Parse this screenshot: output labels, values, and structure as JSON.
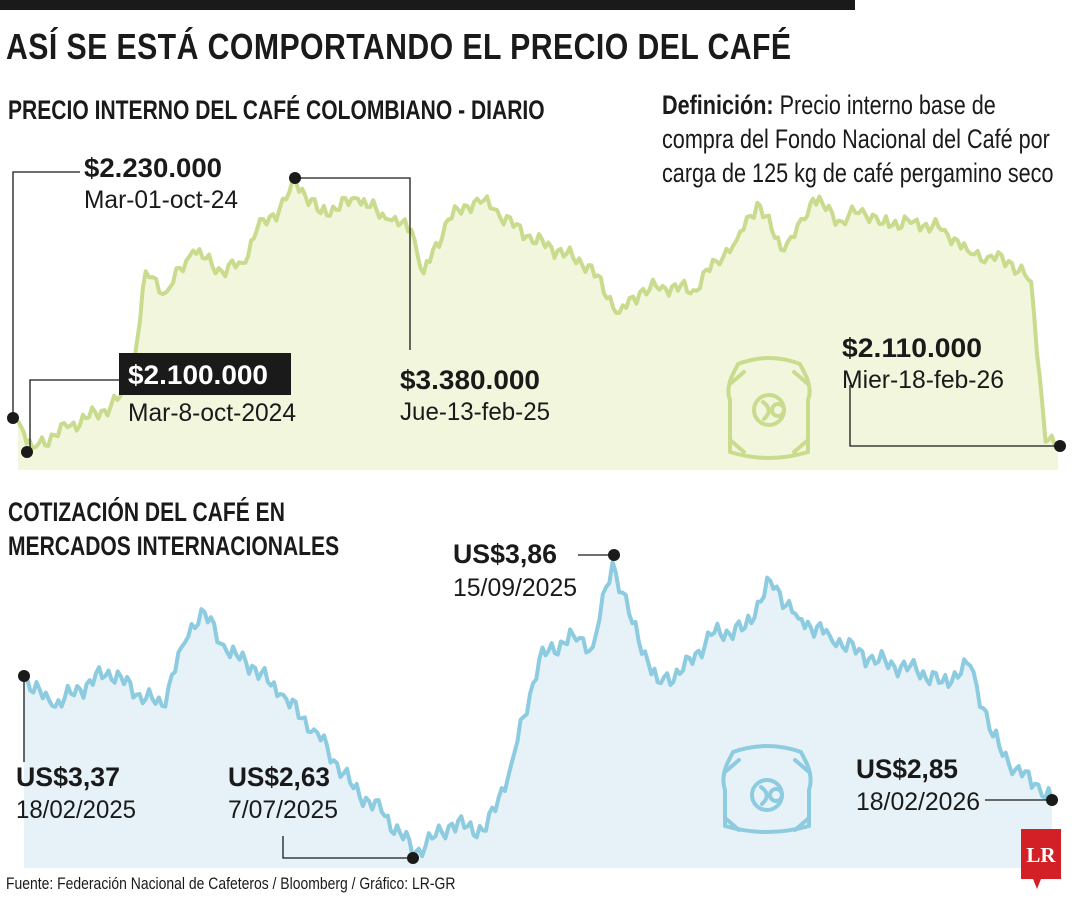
{
  "title": "ASÍ SE ESTÁ COMPORTANDO EL PRECIO DEL CAFÉ",
  "definition": {
    "label": "Definición:",
    "text": " Precio interno base de compra del Fondo Nacional del Café por carga de 125 kg de café pergamino seco"
  },
  "source": "Fuente: Federación Nacional de Cafeteros / Bloomberg / Gráfico: LR-GR",
  "logo": "LR",
  "colors": {
    "domestic_line": "#c9dc8e",
    "domestic_fill": "#f1f6dd",
    "international_line": "#8ccbe0",
    "international_fill": "#e6f2f8",
    "text": "#1a1a1a",
    "logo_red": "#d32027"
  },
  "icons": [
    "coffee-sack-icon",
    "coffee-sack-icon"
  ],
  "chart_data": [
    {
      "type": "area",
      "title": "PRECIO INTERNO DEL CAFÉ COLOMBIANO - DIARIO",
      "x_start": "2024-10-01",
      "x_end": "2026-02-18",
      "grid": false,
      "series": [
        {
          "points": [
            [
              "2024-10-01",
              2230000
            ],
            [
              "2024-10-08",
              2100000
            ],
            [
              "2024-10-25",
              2200000
            ],
            [
              "2024-11-15",
              2300000
            ],
            [
              "2024-11-25",
              2400000
            ],
            [
              "2024-12-02",
              2950000
            ],
            [
              "2024-12-12",
              2850000
            ],
            [
              "2024-12-25",
              3050000
            ],
            [
              "2025-01-08",
              2950000
            ],
            [
              "2025-01-18",
              2990000
            ],
            [
              "2025-01-25",
              3150000
            ],
            [
              "2025-02-05",
              3250000
            ],
            [
              "2025-02-13",
              3380000
            ],
            [
              "2025-02-25",
              3230000
            ],
            [
              "2025-03-15",
              3300000
            ],
            [
              "2025-03-30",
              3200000
            ],
            [
              "2025-04-10",
              3150000
            ],
            [
              "2025-04-16",
              2940000
            ],
            [
              "2025-04-28",
              3200000
            ],
            [
              "2025-05-12",
              3300000
            ],
            [
              "2025-05-20",
              3250000
            ],
            [
              "2025-06-05",
              3120000
            ],
            [
              "2025-06-20",
              3050000
            ],
            [
              "2025-07-05",
              2980000
            ],
            [
              "2025-07-20",
              2750000
            ],
            [
              "2025-07-30",
              2850000
            ],
            [
              "2025-08-10",
              2880000
            ],
            [
              "2025-08-25",
              2860000
            ],
            [
              "2025-09-05",
              3000000
            ],
            [
              "2025-09-15",
              3100000
            ],
            [
              "2025-09-25",
              3280000
            ],
            [
              "2025-10-02",
              3150000
            ],
            [
              "2025-10-08",
              3050000
            ],
            [
              "2025-10-18",
              3200000
            ],
            [
              "2025-10-22",
              3300000
            ],
            [
              "2025-11-05",
              3190000
            ],
            [
              "2025-11-15",
              3250000
            ],
            [
              "2025-11-25",
              3180000
            ],
            [
              "2025-12-10",
              3190000
            ],
            [
              "2025-12-25",
              3150000
            ],
            [
              "2026-01-05",
              3050000
            ],
            [
              "2026-01-15",
              3020000
            ],
            [
              "2026-01-25",
              3000000
            ],
            [
              "2026-02-05",
              2900000
            ],
            [
              "2026-02-12",
              2130000
            ],
            [
              "2026-02-18",
              2110000
            ]
          ]
        }
      ],
      "annotations": [
        {
          "value": "$2.230.000",
          "date": "Mar-01-oct-24"
        },
        {
          "value": "$2.100.000",
          "date": "Mar-8-oct-2024"
        },
        {
          "value": "$3.380.000",
          "date": "Jue-13-feb-25"
        },
        {
          "value": "$2.110.000",
          "date": "Mier-18-feb-26"
        }
      ]
    },
    {
      "type": "area",
      "title": "COTIZACIÓN DEL CAFÉ EN MERCADOS INTERNACIONALES",
      "x_start": "2025-02-18",
      "x_end": "2026-02-18",
      "grid": false,
      "series": [
        {
          "points": [
            [
              "2025-02-18",
              3.37
            ],
            [
              "2025-02-28",
              3.25
            ],
            [
              "2025-03-10",
              3.32
            ],
            [
              "2025-03-20",
              3.4
            ],
            [
              "2025-03-31",
              3.3
            ],
            [
              "2025-04-08",
              3.25
            ],
            [
              "2025-04-15",
              3.5
            ],
            [
              "2025-04-22",
              3.66
            ],
            [
              "2025-05-01",
              3.48
            ],
            [
              "2025-05-10",
              3.42
            ],
            [
              "2025-05-20",
              3.3
            ],
            [
              "2025-06-01",
              3.15
            ],
            [
              "2025-06-15",
              2.9
            ],
            [
              "2025-06-25",
              2.8
            ],
            [
              "2025-07-07",
              2.63
            ],
            [
              "2025-07-20",
              2.75
            ],
            [
              "2025-08-01",
              2.72
            ],
            [
              "2025-08-10",
              3.0
            ],
            [
              "2025-08-20",
              3.45
            ],
            [
              "2025-09-01",
              3.55
            ],
            [
              "2025-09-08",
              3.5
            ],
            [
              "2025-09-15",
              3.86
            ],
            [
              "2025-09-22",
              3.6
            ],
            [
              "2025-10-01",
              3.35
            ],
            [
              "2025-10-10",
              3.4
            ],
            [
              "2025-10-20",
              3.55
            ],
            [
              "2025-11-01",
              3.58
            ],
            [
              "2025-11-10",
              3.78
            ],
            [
              "2025-11-20",
              3.62
            ],
            [
              "2025-12-01",
              3.55
            ],
            [
              "2025-12-15",
              3.45
            ],
            [
              "2026-01-01",
              3.4
            ],
            [
              "2026-01-10",
              3.35
            ],
            [
              "2026-01-20",
              3.42
            ],
            [
              "2026-01-28",
              3.12
            ],
            [
              "2026-02-05",
              2.98
            ],
            [
              "2026-02-12",
              2.92
            ],
            [
              "2026-02-18",
              2.85
            ]
          ]
        }
      ],
      "annotations": [
        {
          "value": "US$3,37",
          "date": "18/02/2025"
        },
        {
          "value": "US$2,63",
          "date": "7/07/2025"
        },
        {
          "value": "US$3,86",
          "date": "15/09/2025"
        },
        {
          "value": "US$2,85",
          "date": "18/02/2026"
        }
      ]
    }
  ]
}
